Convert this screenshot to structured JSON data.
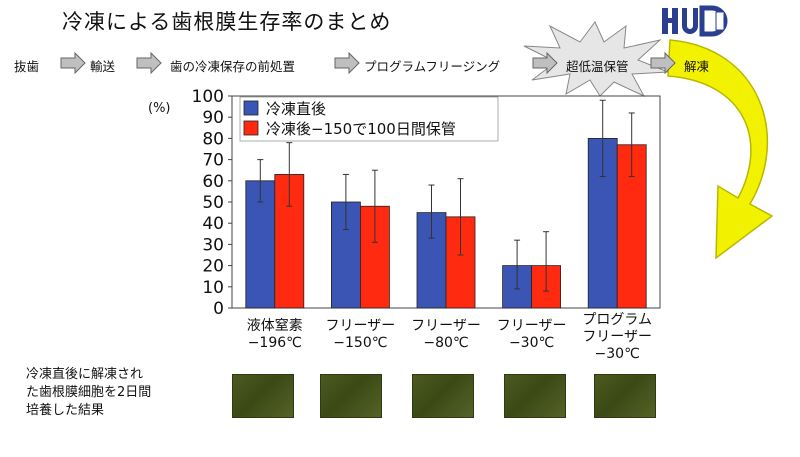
{
  "title": "冷凍による歯根膜生存率のまとめ",
  "logo_icon": "hud-logo-icon",
  "flow": {
    "steps": [
      "抜歯",
      "輸送",
      "歯の冷凍保存の前処置",
      "プログラムフリージング",
      "超低温保管",
      "解凍"
    ],
    "arrow_color": "#bfbfbf",
    "highlight_color": "#f2f200"
  },
  "chart_data": {
    "type": "bar",
    "y_unit_label": "(%)",
    "ylim": [
      0,
      100
    ],
    "yticks": [
      0,
      10,
      20,
      30,
      40,
      50,
      60,
      70,
      80,
      90,
      100
    ],
    "categories": [
      [
        "液体窒素",
        "−196℃"
      ],
      [
        "フリーザー",
        "−150℃"
      ],
      [
        "フリーザー",
        "−80℃"
      ],
      [
        "フリーザー",
        "−30℃"
      ],
      [
        "プログラム",
        "フリーザー",
        "−30℃"
      ]
    ],
    "series": [
      {
        "name": "冷凍直後",
        "color": "#3a55b4",
        "values": [
          60,
          50,
          45,
          20,
          80
        ],
        "err_low": [
          50,
          37,
          33,
          9,
          62
        ],
        "err_high": [
          70,
          63,
          58,
          32,
          98
        ]
      },
      {
        "name": "冷凍後−150で100日間保管",
        "color": "#ff2a10",
        "values": [
          63,
          48,
          43,
          20,
          77
        ],
        "err_low": [
          48,
          31,
          25,
          8,
          62
        ],
        "err_high": [
          78,
          65,
          61,
          36,
          92
        ]
      }
    ],
    "legend_position": "top-left",
    "grid": false
  },
  "caption": [
    "冷凍直後に解凍され",
    "た歯根膜細胞を2日間",
    "培養した結果"
  ],
  "thumbnails": [
    "cell-culture-image-1",
    "cell-culture-image-2",
    "cell-culture-image-3",
    "cell-culture-image-4",
    "cell-culture-image-5"
  ]
}
